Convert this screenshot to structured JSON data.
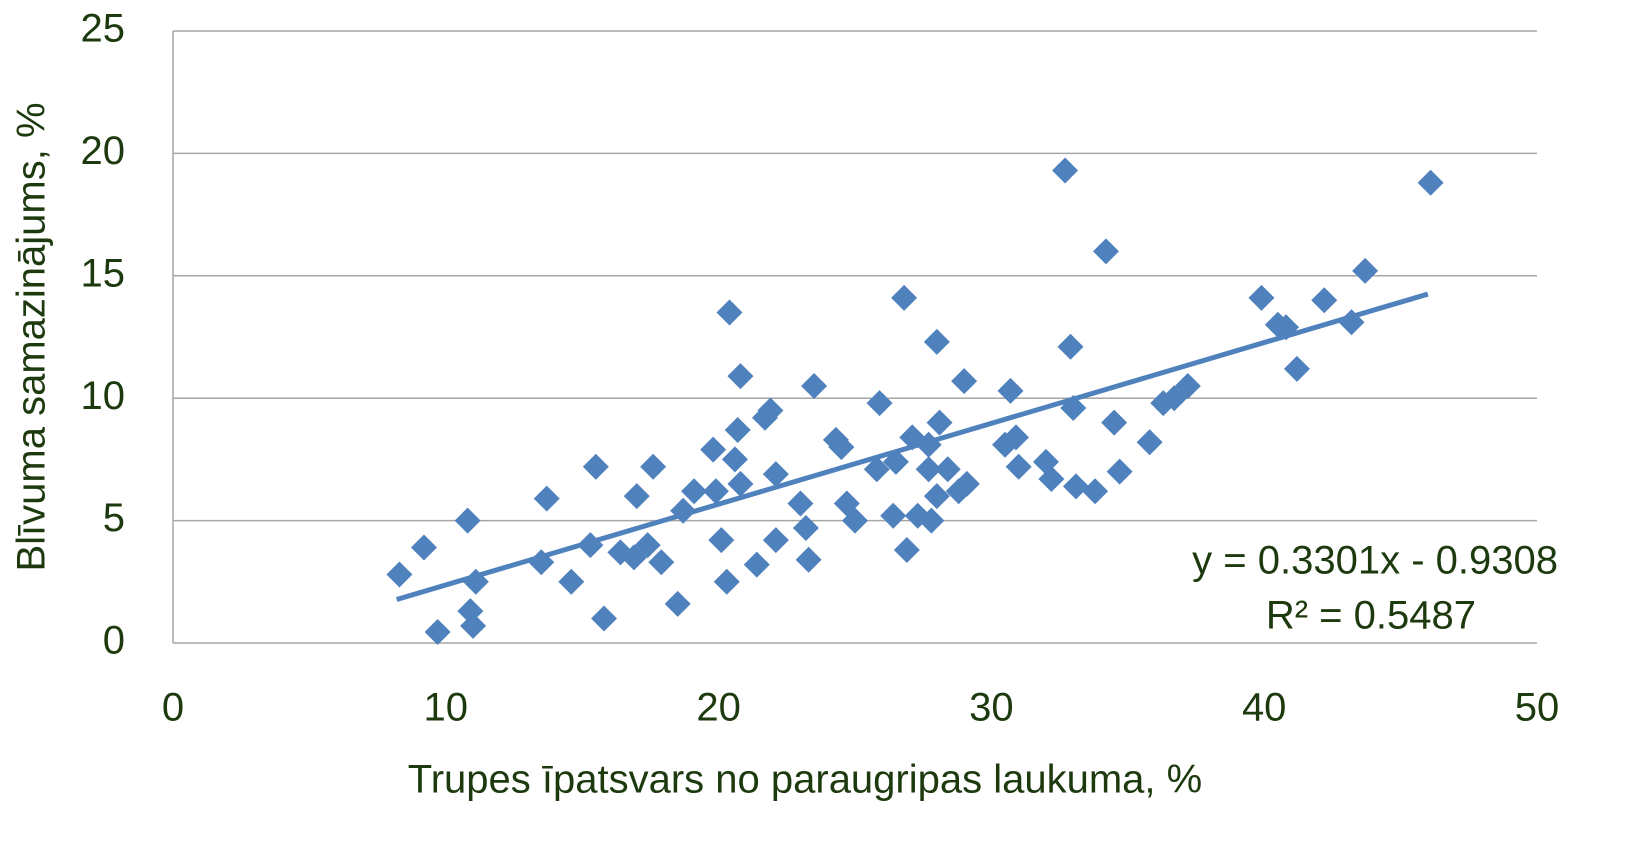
{
  "chart_data": {
    "type": "scatter",
    "xlabel": "Trupes īpatsvars no paraugripas laukuma, %",
    "ylabel": "Blīvuma samazinājums, %",
    "color": "#4f81bd",
    "x": [
      8.3,
      9.2,
      9.7,
      10.8,
      10.9,
      11.0,
      11.1,
      13.5,
      13.7,
      14.6,
      15.3,
      15.5,
      15.8,
      16.4,
      17.0,
      16.9,
      17.4,
      17.6,
      17.9,
      18.5,
      18.7,
      19.1,
      19.8,
      19.9,
      20.1,
      20.3,
      20.4,
      20.6,
      20.7,
      20.8,
      20.8,
      21.4,
      21.7,
      21.9,
      22.1,
      22.1,
      23.0,
      23.2,
      23.3,
      23.5,
      24.3,
      24.5,
      24.7,
      25.0,
      25.9,
      25.8,
      26.4,
      26.5,
      26.8,
      26.9,
      27.1,
      27.3,
      27.7,
      27.7,
      27.8,
      28.0,
      28.0,
      28.1,
      28.4,
      28.8,
      29.1,
      29.0,
      30.5,
      30.7,
      30.9,
      31.0,
      32.0,
      32.2,
      32.7,
      32.9,
      33.0,
      33.1,
      33.8,
      34.2,
      34.5,
      34.7,
      35.8,
      36.3,
      36.7,
      37.2,
      39.9,
      40.5,
      40.8,
      41.2,
      42.2,
      43.2,
      43.7,
      46.1
    ],
    "values": [
      2.8,
      3.9,
      0.45,
      5.0,
      1.3,
      0.7,
      2.5,
      3.3,
      5.9,
      2.5,
      4.0,
      7.2,
      1.0,
      3.7,
      6.0,
      3.5,
      4.0,
      7.2,
      3.3,
      1.6,
      5.4,
      6.2,
      7.9,
      6.2,
      4.2,
      2.5,
      13.5,
      7.5,
      8.7,
      6.5,
      10.9,
      3.2,
      9.2,
      9.5,
      6.9,
      4.2,
      5.7,
      4.7,
      3.4,
      10.5,
      8.3,
      8.0,
      5.7,
      5.0,
      9.8,
      7.1,
      5.2,
      7.4,
      14.1,
      3.8,
      8.4,
      5.2,
      8.1,
      7.1,
      5.0,
      6.0,
      12.3,
      9.0,
      7.1,
      6.2,
      6.5,
      10.7,
      8.1,
      10.3,
      8.4,
      7.2,
      7.4,
      6.7,
      19.3,
      12.1,
      9.6,
      6.4,
      6.2,
      16.0,
      9.0,
      7.0,
      8.2,
      9.8,
      10.0,
      10.5,
      14.1,
      13.0,
      12.9,
      11.2,
      14.0,
      13.1,
      15.2,
      18.8
    ],
    "trendline": {
      "slope": 0.3301,
      "intercept": -0.9308,
      "xrange": [
        8.2,
        46
      ],
      "label": "y = 0.3301x - 0.9308",
      "r2_label": "R² = 0.5487"
    },
    "xlim": [
      0,
      50
    ],
    "xticks": [
      0,
      10,
      20,
      30,
      40,
      50
    ],
    "ylim": [
      0,
      25
    ],
    "yticks": [
      0,
      5,
      10,
      15,
      20,
      25
    ],
    "grid": true
  }
}
